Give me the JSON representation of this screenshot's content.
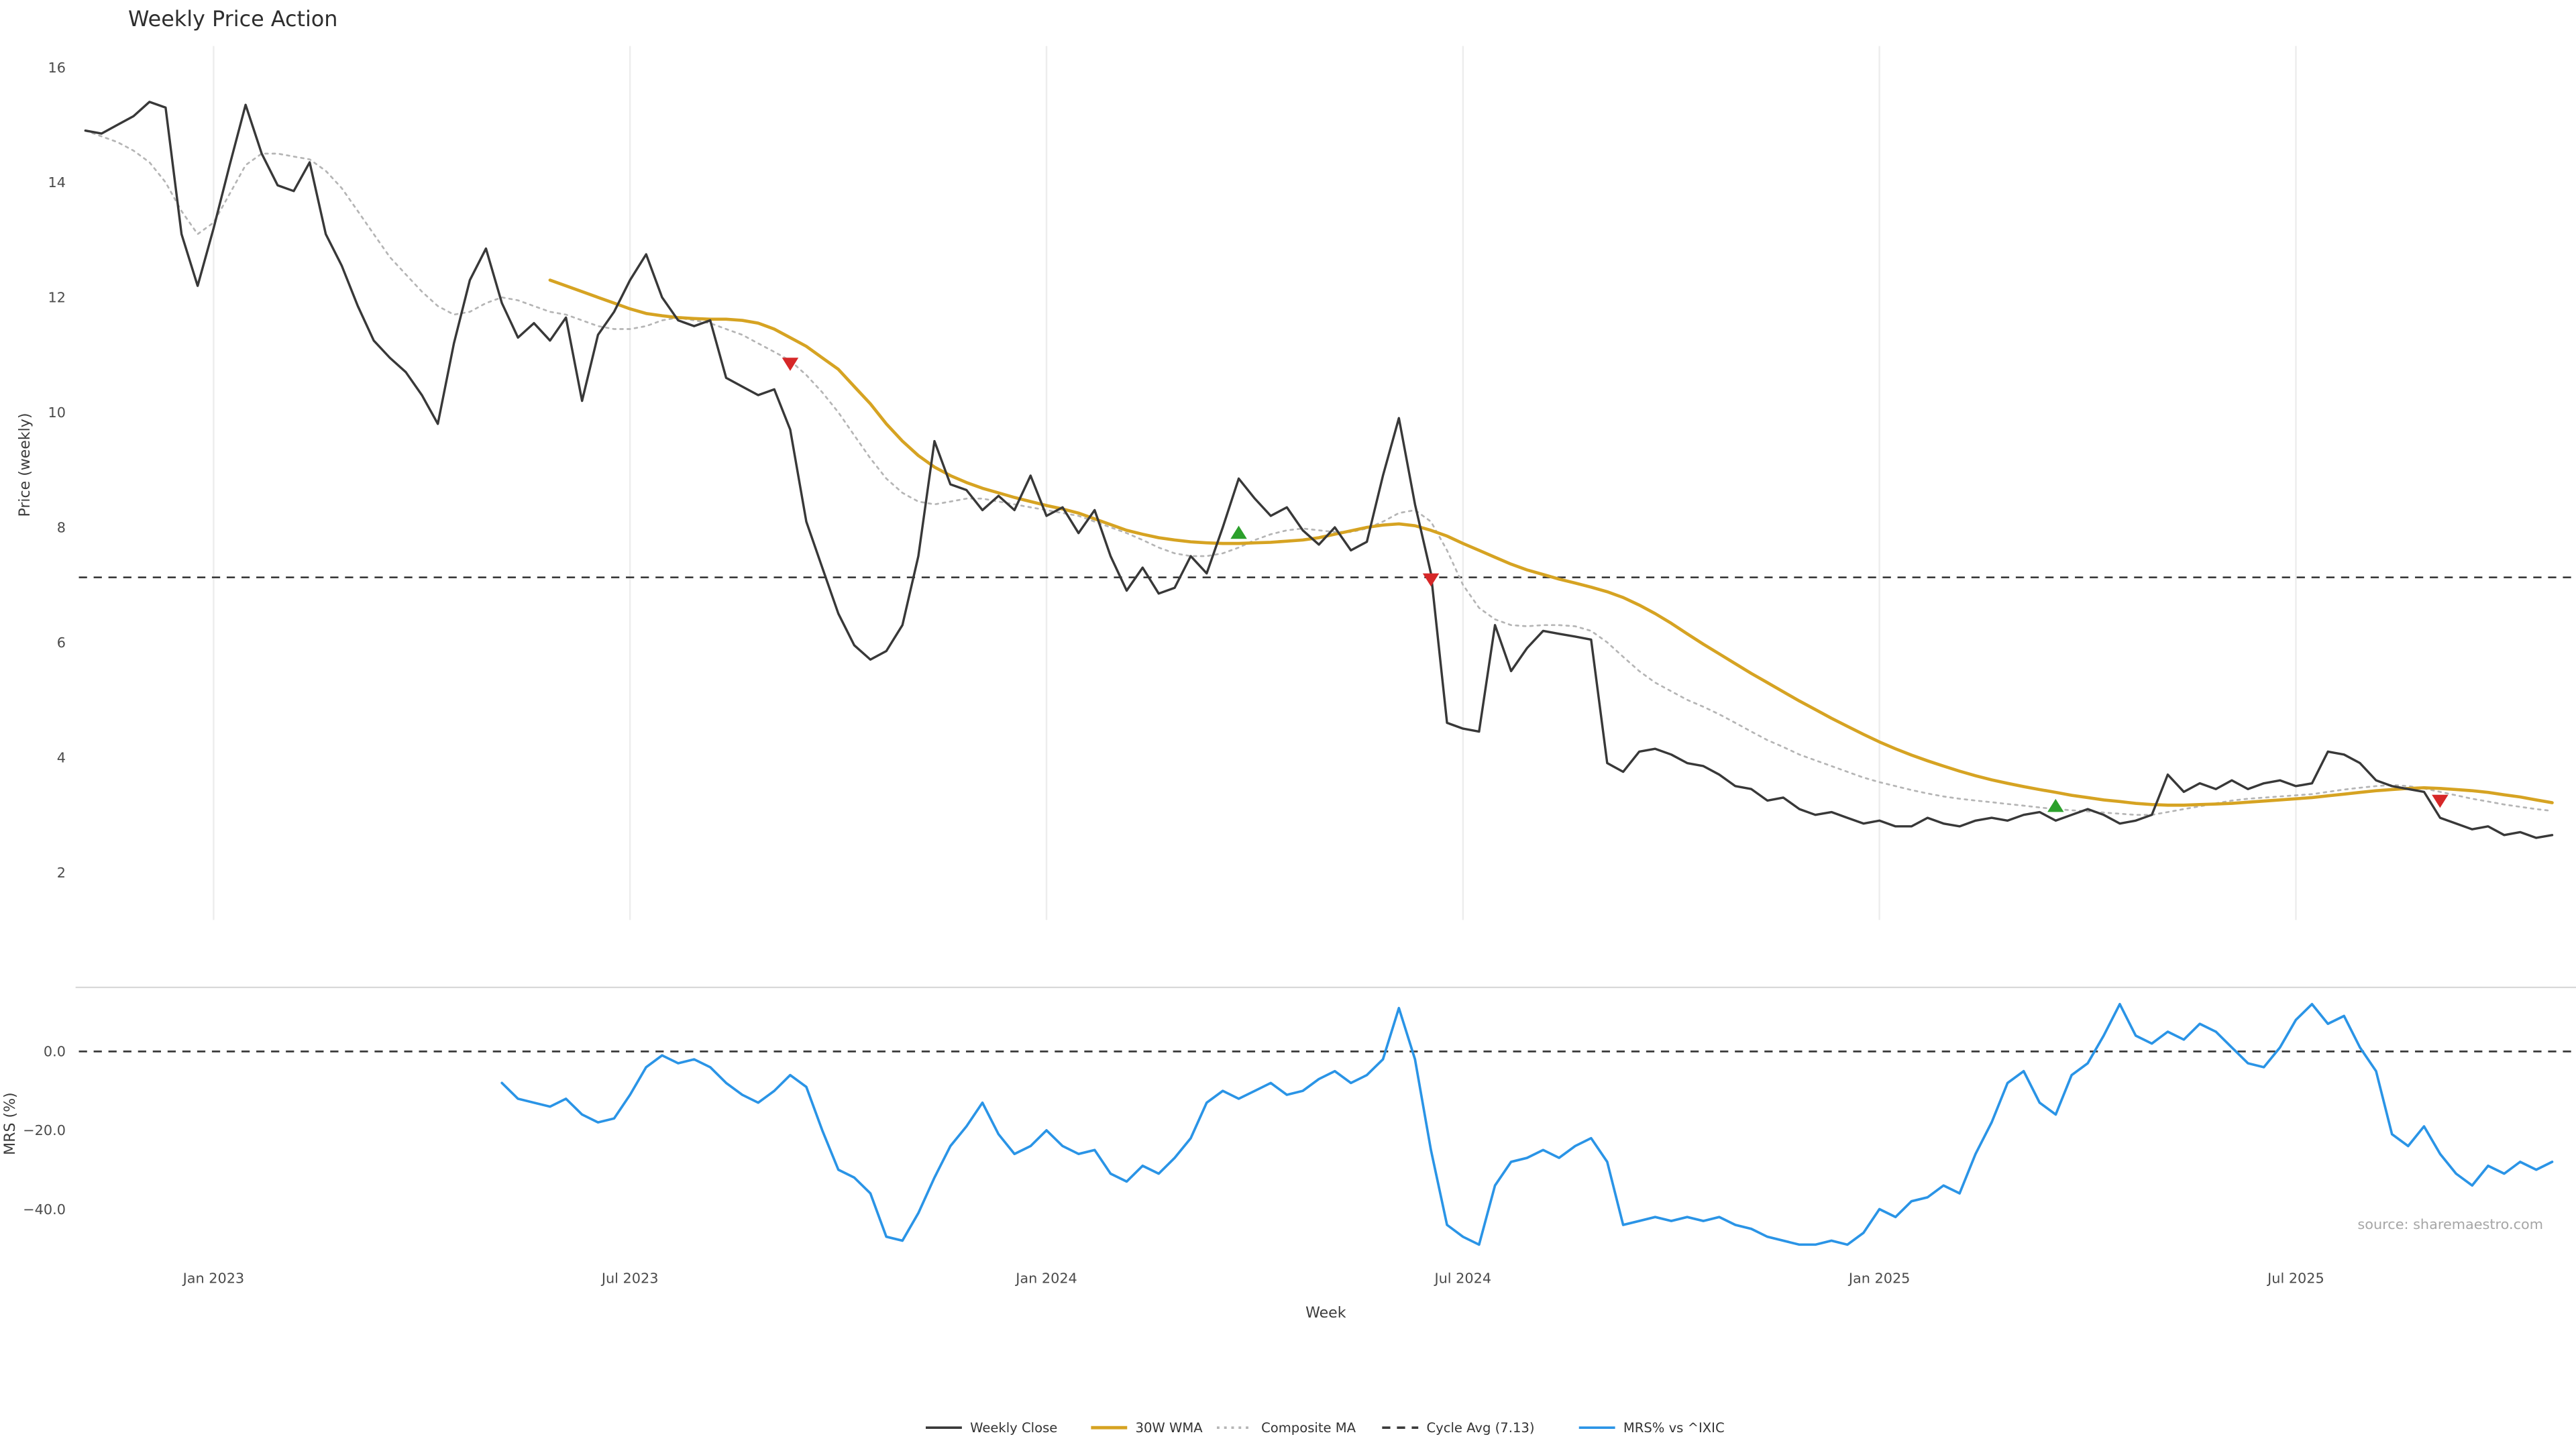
{
  "source_text": "source: sharemaestro.com",
  "chart_data": {
    "type": "line",
    "title": "Weekly Price Action",
    "xlabel": "Week",
    "x_unit": "week_index",
    "weeks_total": 155,
    "grid": "vertical-only",
    "legend_position": "bottom-center",
    "price_panel": {
      "ylabel": "Price (weekly)",
      "yticks": [
        16,
        14,
        12,
        10,
        8,
        6,
        4,
        2
      ],
      "ytick_labels": [
        "16",
        "14",
        "12",
        "10",
        "8",
        "6",
        "4",
        "2"
      ],
      "ylim": [
        1.2,
        16.4
      ]
    },
    "mrs_panel": {
      "ylabel": "MRS (%)",
      "yticks": [
        0,
        -20,
        -40
      ],
      "ytick_labels": [
        "0.0",
        "−20.0",
        "−40.0"
      ],
      "ylim": [
        -54,
        16
      ]
    },
    "x_ticks": [
      {
        "week": 8,
        "label": "Jan 2023"
      },
      {
        "week": 34,
        "label": "Jul 2023"
      },
      {
        "week": 60,
        "label": "Jan 2024"
      },
      {
        "week": 86,
        "label": "Jul 2024"
      },
      {
        "week": 112,
        "label": "Jan 2025"
      },
      {
        "week": 138,
        "label": "Jul 2025"
      }
    ],
    "cycle_avg": 7.13,
    "mrs_zero_line": 0,
    "signal_colors": {
      "buy": "#2ca02c",
      "sell": "#d62728"
    },
    "signals": [
      {
        "week": 44,
        "price": 10.85,
        "type": "sell"
      },
      {
        "week": 72,
        "price": 7.9,
        "type": "buy"
      },
      {
        "week": 84,
        "price": 7.1,
        "type": "sell"
      },
      {
        "week": 123,
        "price": 3.15,
        "type": "buy"
      },
      {
        "week": 147,
        "price": 3.25,
        "type": "sell"
      }
    ],
    "series": [
      {
        "name": "Composite MA",
        "panel": "price",
        "color": "#b5b5b5",
        "style": "dotted",
        "width": 1.1,
        "start_week": 0,
        "values": [
          14.9,
          14.8,
          14.7,
          14.55,
          14.35,
          14.0,
          13.5,
          13.1,
          13.3,
          13.8,
          14.3,
          14.5,
          14.5,
          14.45,
          14.4,
          14.2,
          13.9,
          13.5,
          13.1,
          12.7,
          12.4,
          12.1,
          11.85,
          11.7,
          11.75,
          11.9,
          12.0,
          11.95,
          11.85,
          11.75,
          11.7,
          11.6,
          11.5,
          11.45,
          11.45,
          11.5,
          11.6,
          11.65,
          11.6,
          11.55,
          11.45,
          11.35,
          11.2,
          11.05,
          10.9,
          10.65,
          10.35,
          10.0,
          9.6,
          9.2,
          8.85,
          8.6,
          8.45,
          8.4,
          8.45,
          8.5,
          8.5,
          8.45,
          8.4,
          8.35,
          8.3,
          8.25,
          8.2,
          8.1,
          8.0,
          7.9,
          7.78,
          7.65,
          7.55,
          7.5,
          7.5,
          7.55,
          7.65,
          7.78,
          7.88,
          7.95,
          7.98,
          7.95,
          7.92,
          7.92,
          7.98,
          8.1,
          8.25,
          8.3,
          8.1,
          7.6,
          7.0,
          6.6,
          6.4,
          6.3,
          6.28,
          6.3,
          6.3,
          6.28,
          6.2,
          6.0,
          5.75,
          5.5,
          5.3,
          5.15,
          5.0,
          4.88,
          4.75,
          4.6,
          4.45,
          4.3,
          4.18,
          4.05,
          3.95,
          3.85,
          3.75,
          3.65,
          3.57,
          3.5,
          3.43,
          3.37,
          3.32,
          3.28,
          3.25,
          3.22,
          3.19,
          3.16,
          3.13,
          3.1,
          3.08,
          3.06,
          3.04,
          3.02,
          3.0,
          3.0,
          3.05,
          3.1,
          3.15,
          3.2,
          3.25,
          3.28,
          3.3,
          3.32,
          3.34,
          3.36,
          3.4,
          3.44,
          3.47,
          3.5,
          3.52,
          3.5,
          3.46,
          3.4,
          3.34,
          3.28,
          3.23,
          3.18,
          3.14,
          3.1,
          3.07
        ]
      },
      {
        "name": "30W WMA",
        "panel": "price",
        "color": "#d6a322",
        "style": "solid",
        "width": 1.9,
        "start_week": 29,
        "values": [
          12.3,
          12.2,
          12.1,
          12.0,
          11.9,
          11.8,
          11.72,
          11.68,
          11.65,
          11.63,
          11.62,
          11.62,
          11.6,
          11.55,
          11.45,
          11.3,
          11.15,
          10.95,
          10.75,
          10.45,
          10.15,
          9.8,
          9.5,
          9.25,
          9.05,
          8.9,
          8.78,
          8.68,
          8.6,
          8.52,
          8.45,
          8.38,
          8.32,
          8.25,
          8.15,
          8.05,
          7.95,
          7.88,
          7.82,
          7.78,
          7.75,
          7.73,
          7.72,
          7.72,
          7.73,
          7.74,
          7.76,
          7.78,
          7.82,
          7.88,
          7.94,
          8.0,
          8.04,
          8.06,
          8.03,
          7.95,
          7.85,
          7.72,
          7.6,
          7.48,
          7.36,
          7.26,
          7.18,
          7.1,
          7.03,
          6.96,
          6.88,
          6.78,
          6.65,
          6.5,
          6.33,
          6.15,
          5.97,
          5.8,
          5.63,
          5.46,
          5.3,
          5.14,
          4.98,
          4.83,
          4.68,
          4.54,
          4.4,
          4.27,
          4.15,
          4.04,
          3.94,
          3.85,
          3.76,
          3.68,
          3.61,
          3.55,
          3.49,
          3.44,
          3.39,
          3.34,
          3.3,
          3.26,
          3.23,
          3.2,
          3.18,
          3.17,
          3.17,
          3.18,
          3.19,
          3.2,
          3.22,
          3.24,
          3.26,
          3.28,
          3.3,
          3.33,
          3.36,
          3.39,
          3.42,
          3.44,
          3.46,
          3.47,
          3.46,
          3.44,
          3.42,
          3.39,
          3.35,
          3.31,
          3.26,
          3.21
        ]
      },
      {
        "name": "Weekly Close",
        "panel": "price",
        "color": "#383838",
        "style": "solid",
        "width": 1.4,
        "start_week": 0,
        "values": [
          14.9,
          14.85,
          15.0,
          15.15,
          15.4,
          15.3,
          13.1,
          12.2,
          13.2,
          14.3,
          15.35,
          14.5,
          13.95,
          13.85,
          14.35,
          13.1,
          12.55,
          11.85,
          11.25,
          10.95,
          10.7,
          10.3,
          9.8,
          11.2,
          12.3,
          12.85,
          11.9,
          11.3,
          11.55,
          11.25,
          11.65,
          10.2,
          11.35,
          11.75,
          12.3,
          12.75,
          12.0,
          11.6,
          11.5,
          11.6,
          10.6,
          10.45,
          10.3,
          10.4,
          9.7,
          8.1,
          7.3,
          6.5,
          5.95,
          5.7,
          5.85,
          6.3,
          7.5,
          9.5,
          8.75,
          8.65,
          8.3,
          8.55,
          8.3,
          8.9,
          8.2,
          8.35,
          7.9,
          8.3,
          7.5,
          6.9,
          7.3,
          6.85,
          6.95,
          7.5,
          7.2,
          8.0,
          8.85,
          8.5,
          8.2,
          8.35,
          7.95,
          7.7,
          8.0,
          7.6,
          7.75,
          8.9,
          9.9,
          8.4,
          7.2,
          4.6,
          4.5,
          4.45,
          6.3,
          5.5,
          5.9,
          6.2,
          6.15,
          6.1,
          6.05,
          3.9,
          3.75,
          4.1,
          4.15,
          4.05,
          3.9,
          3.85,
          3.7,
          3.5,
          3.45,
          3.25,
          3.3,
          3.1,
          3.0,
          3.05,
          2.95,
          2.85,
          2.9,
          2.8,
          2.8,
          2.95,
          2.85,
          2.8,
          2.9,
          2.95,
          2.9,
          3.0,
          3.05,
          2.9,
          3.0,
          3.1,
          3.0,
          2.85,
          2.9,
          3.0,
          3.7,
          3.4,
          3.55,
          3.45,
          3.6,
          3.45,
          3.55,
          3.6,
          3.5,
          3.55,
          4.1,
          4.05,
          3.9,
          3.6,
          3.5,
          3.45,
          3.4,
          2.95,
          2.85,
          2.75,
          2.8,
          2.65,
          2.7,
          2.6,
          2.65
        ]
      },
      {
        "name": "MRS% vs ^IXIC",
        "panel": "mrs",
        "color": "#2a94e6",
        "style": "solid",
        "width": 1.5,
        "start_week": 26,
        "values": [
          -8,
          -12,
          -13,
          -14,
          -12,
          -16,
          -18,
          -17,
          -11,
          -4,
          -1,
          -3,
          -2,
          -4,
          -8,
          -11,
          -13,
          -10,
          -6,
          -9,
          -20,
          -30,
          -32,
          -36,
          -47,
          -48,
          -41,
          -32,
          -24,
          -19,
          -13,
          -21,
          -26,
          -24,
          -20,
          -24,
          -26,
          -25,
          -31,
          -33,
          -29,
          -31,
          -27,
          -22,
          -13,
          -10,
          -12,
          -10,
          -8,
          -11,
          -10,
          -7,
          -5,
          -8,
          -6,
          -2,
          11,
          -2,
          -25,
          -44,
          -47,
          -49,
          -34,
          -28,
          -27,
          -25,
          -27,
          -24,
          -22,
          -28,
          -44,
          -43,
          -42,
          -43,
          -42,
          -43,
          -42,
          -44,
          -45,
          -47,
          -48,
          -49,
          -49,
          -48,
          -49,
          -46,
          -40,
          -42,
          -38,
          -37,
          -34,
          -36,
          -26,
          -18,
          -8,
          -5,
          -13,
          -16,
          -6,
          -3,
          4,
          12,
          4,
          2,
          5,
          3,
          7,
          5,
          1,
          -3,
          -4,
          1,
          8,
          12,
          7,
          9,
          1,
          -5,
          -21,
          -24,
          -19,
          -26,
          -31,
          -34,
          -29,
          -31,
          -28,
          -30,
          -28
        ]
      }
    ],
    "legend": [
      {
        "label": "Weekly Close",
        "color": "#383838",
        "style": "solid"
      },
      {
        "label": "30W WMA",
        "color": "#d6a322",
        "style": "solid"
      },
      {
        "label": "Composite MA",
        "color": "#b5b5b5",
        "style": "dotted"
      },
      {
        "label": "Cycle Avg (7.13)",
        "color": "#3a3a3a",
        "style": "dashed"
      },
      {
        "label": "MRS% vs ^IXIC",
        "color": "#2a94e6",
        "style": "solid"
      }
    ]
  }
}
